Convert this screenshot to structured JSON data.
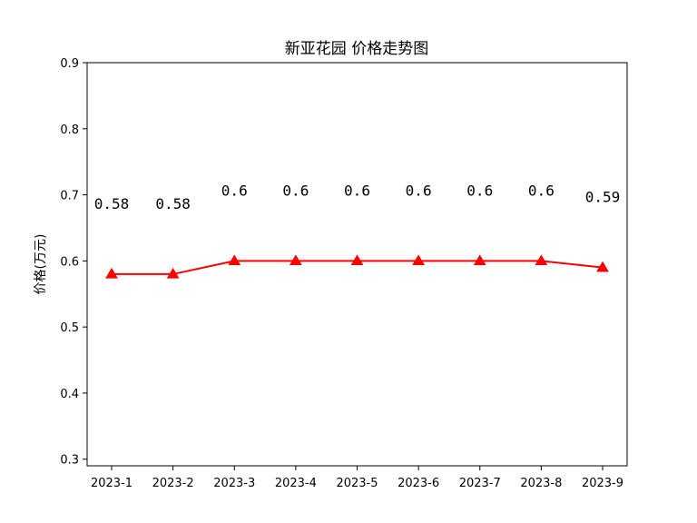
{
  "chart_data": {
    "type": "line",
    "title": "新亚花园 价格走势图",
    "xlabel": "",
    "ylabel": "价格(万元)",
    "categories": [
      "2023-1",
      "2023-2",
      "2023-3",
      "2023-4",
      "2023-5",
      "2023-6",
      "2023-7",
      "2023-8",
      "2023-9"
    ],
    "series": [
      {
        "values": [
          0.58,
          0.58,
          0.6,
          0.6,
          0.6,
          0.6,
          0.6,
          0.6,
          0.59
        ],
        "color": "#ff0000",
        "marker": "triangle-up"
      }
    ],
    "data_labels": [
      "0.58",
      "0.58",
      "0.6",
      "0.6",
      "0.6",
      "0.6",
      "0.6",
      "0.6",
      "0.59"
    ],
    "yticks": [
      "0.3",
      "0.4",
      "0.5",
      "0.6",
      "0.7",
      "0.8",
      "0.9"
    ],
    "ylim": [
      0.29,
      0.9
    ],
    "grid": false,
    "legend": "none"
  }
}
